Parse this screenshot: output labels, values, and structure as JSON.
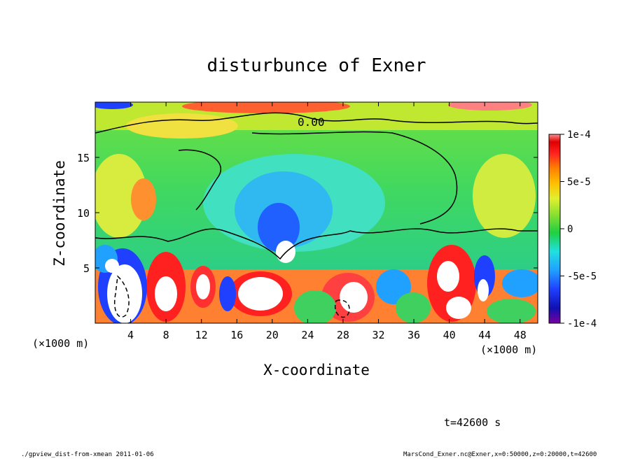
{
  "chart_data": {
    "type": "heatmap",
    "title": "disturbunce of Exner",
    "xlabel": "X-coordinate",
    "ylabel": "Z-coordinate",
    "x_unit_label": "(×1000 m)",
    "x_unit_label_right": "(×1000 m)",
    "xlim": [
      0,
      50
    ],
    "ylim": [
      0,
      20
    ],
    "x_ticks": [
      4,
      8,
      12,
      16,
      20,
      24,
      28,
      32,
      36,
      40,
      44,
      48
    ],
    "y_ticks": [
      5,
      10,
      15
    ],
    "colorbar": {
      "range": [
        -0.0001,
        0.0001
      ],
      "tick_values": [
        0.0001,
        5e-05,
        0,
        -5e-05,
        -0.0001
      ],
      "tick_labels": [
        "1e-4",
        "5e-5",
        "0",
        "-5e-5",
        "-1e-4"
      ]
    },
    "contour_label": "0.00",
    "time_label": "t=42600 s",
    "footer_left": "./gpview_dist-from-xmean  2011-01-06",
    "footer_right": "MarsCond_Exner.nc@Exner,x=0:50000,z=0:20000,t=42600"
  }
}
